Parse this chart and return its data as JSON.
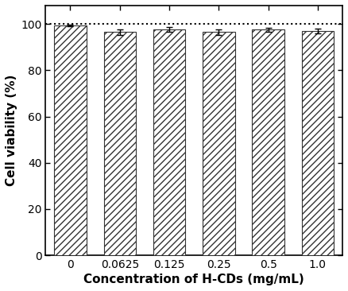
{
  "categories": [
    "0",
    "0.0625",
    "0.125",
    "0.25",
    "0.5",
    "1.0"
  ],
  "values": [
    99.5,
    96.5,
    97.8,
    96.5,
    97.5,
    97.0
  ],
  "errors": [
    0.3,
    1.2,
    1.0,
    1.3,
    1.0,
    1.0
  ],
  "bar_color": "white",
  "hatch": "////",
  "hatch_color": "#888888",
  "bar_edge_color": "#333333",
  "dashed_line_y": 100,
  "ylabel": "Cell viability (%)",
  "xlabel": "Concentration of H-CDs (mg/mL)",
  "ylim": [
    0,
    108
  ],
  "yticks": [
    0,
    20,
    40,
    60,
    80,
    100
  ],
  "background_color": "#ffffff",
  "plot_bg_color": "#ffffff",
  "bar_width": 0.65,
  "label_fontsize": 11,
  "tick_fontsize": 10
}
